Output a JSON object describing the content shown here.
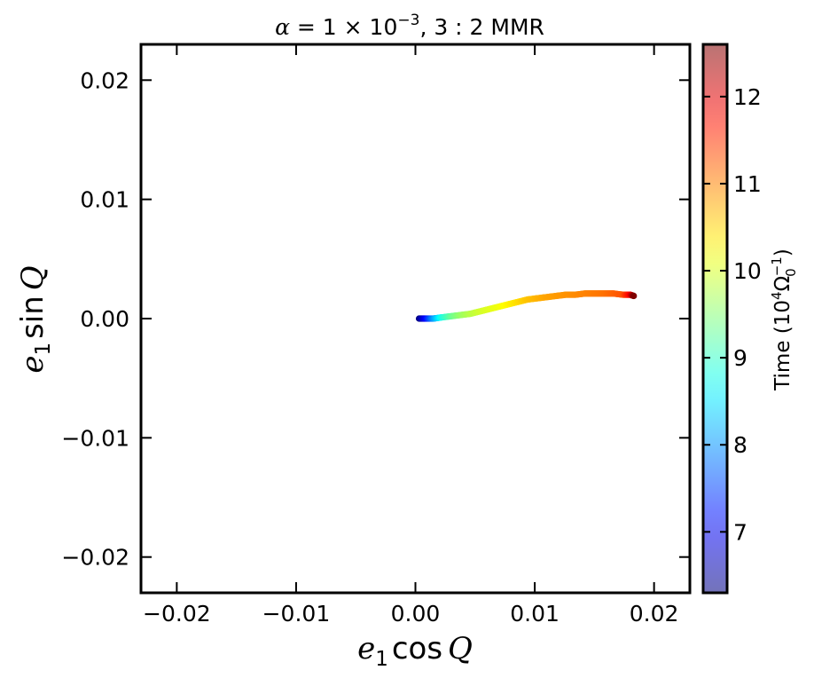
{
  "chart_data": {
    "type": "scatter",
    "title": {
      "alpha_symbol": "α",
      "equals": " = 1 × 10",
      "exponent": "−3",
      "rest": ",  3 : 2 MMR"
    },
    "xlabel": {
      "e": "e",
      "sub": "1",
      "func": "cos",
      "var": "Q"
    },
    "ylabel": {
      "e": "e",
      "sub": "1",
      "func": "sin",
      "var": "Q"
    },
    "xlim": [
      -0.023,
      0.023
    ],
    "ylim": [
      -0.023,
      0.023
    ],
    "xticks": [
      -0.02,
      -0.01,
      0.0,
      0.01,
      0.02
    ],
    "xtick_labels": [
      "−0.02",
      "−0.01",
      "0.00",
      "0.01",
      "0.02"
    ],
    "yticks": [
      -0.02,
      -0.01,
      0.0,
      0.01,
      0.02
    ],
    "ytick_labels": [
      "−0.02",
      "−0.01",
      "0.00",
      "0.01",
      "0.02"
    ],
    "colorbar": {
      "label": "Time (10",
      "label_exp": "4",
      "label_omega": "Ω",
      "label_omega_sub": "0",
      "label_omega_exp": "−1",
      "label_close": ")",
      "range": [
        6.3,
        12.6
      ],
      "ticks": [
        7,
        8,
        9,
        10,
        11,
        12
      ],
      "tick_labels": [
        "7",
        "8",
        "9",
        "10",
        "11",
        "12"
      ],
      "colormap": "jet"
    },
    "series": [
      {
        "x": [
          0.0003,
          0.0008,
          0.0015,
          0.0022,
          0.003,
          0.0038,
          0.0046,
          0.0054,
          0.0062,
          0.007,
          0.0078,
          0.0086,
          0.0094,
          0.0102,
          0.011,
          0.0118,
          0.0126,
          0.0134,
          0.0142,
          0.015,
          0.0158,
          0.0166,
          0.0174,
          0.018,
          0.0183
        ],
        "y": [
          0.0,
          0.0,
          0.0,
          0.0001,
          0.0002,
          0.0003,
          0.0004,
          0.0006,
          0.0008,
          0.001,
          0.0012,
          0.0014,
          0.0016,
          0.0017,
          0.0018,
          0.0019,
          0.002,
          0.002,
          0.0021,
          0.0021,
          0.0021,
          0.0021,
          0.002,
          0.002,
          0.0019
        ],
        "time": [
          6.3,
          7.0,
          8.0,
          8.8,
          9.3,
          9.6,
          9.8,
          9.95,
          10.05,
          10.15,
          10.3,
          10.45,
          10.6,
          10.7,
          10.8,
          10.85,
          10.9,
          10.95,
          11.0,
          11.05,
          11.1,
          11.2,
          11.3,
          11.8,
          12.6
        ]
      }
    ]
  }
}
